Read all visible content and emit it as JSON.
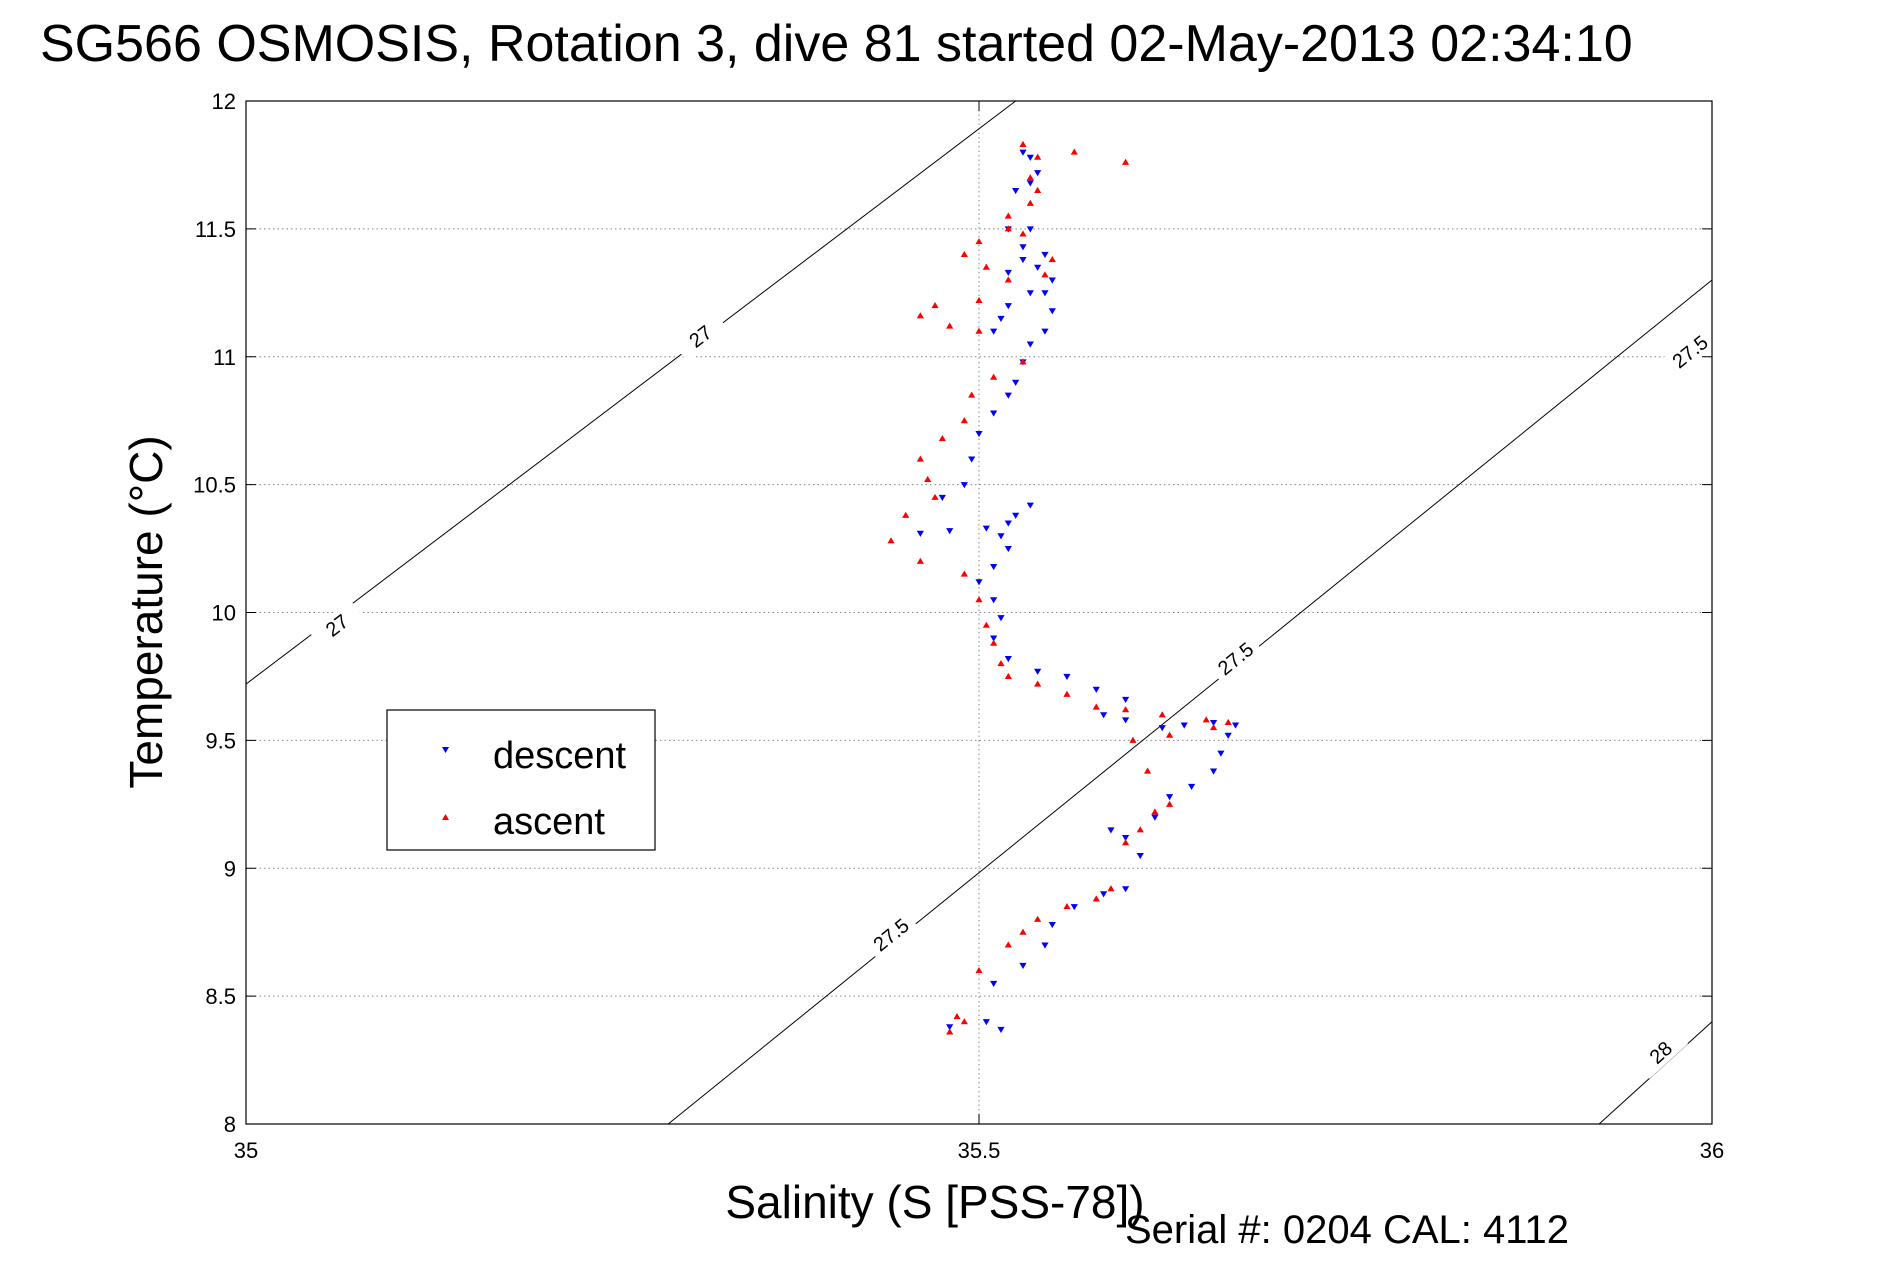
{
  "title": "SG566 OSMOSIS, Rotation 3, dive 81 started 02-May-2013 02:34:10",
  "footer": {
    "serial_text": "Serial #: 0204  CAL: 4112"
  },
  "colors": {
    "descent": "#0000ff",
    "ascent": "#ff0000",
    "contour": "#000000",
    "grid": "#888888"
  },
  "chart_data": {
    "type": "scatter",
    "xlabel": "Salinity (S [PSS-78])",
    "ylabel": "Temperature (°C)",
    "xlim": [
      35,
      36
    ],
    "ylim": [
      8,
      12
    ],
    "xticks": [
      35,
      35.5,
      36
    ],
    "xtick_labels": [
      "35",
      "35.5",
      "36"
    ],
    "yticks": [
      8,
      8.5,
      9,
      9.5,
      10,
      10.5,
      11,
      11.5,
      12
    ],
    "ytick_labels": [
      "8",
      "8.5",
      "9",
      "9.5",
      "10",
      "10.5",
      "11",
      "11.5",
      "12"
    ],
    "grid": true,
    "legend_position": "middle-left",
    "contours": [
      {
        "label": "27",
        "line": [
          [
            35.0,
            9.72
          ],
          [
            35.525,
            12.0
          ]
        ],
        "label_positions": [
          [
            35.062,
            9.95
          ],
          [
            35.31,
            11.08
          ]
        ]
      },
      {
        "label": "27.5",
        "line": [
          [
            35.288,
            8.0
          ],
          [
            36.0,
            11.3
          ]
        ],
        "label_positions": [
          [
            35.44,
            8.74
          ],
          [
            35.675,
            9.82
          ],
          [
            36.0,
            11.02
          ]
        ]
      },
      {
        "label": "28",
        "line": [
          [
            35.923,
            8.0
          ],
          [
            36.0,
            8.4
          ]
        ],
        "label_positions": [
          [
            35.965,
            8.28
          ]
        ]
      }
    ],
    "series": [
      {
        "name": "descent",
        "marker": "triangle-down",
        "points": [
          [
            35.48,
            8.38
          ],
          [
            35.505,
            8.4
          ],
          [
            35.515,
            8.37
          ],
          [
            35.51,
            8.55
          ],
          [
            35.53,
            8.62
          ],
          [
            35.545,
            8.7
          ],
          [
            35.55,
            8.78
          ],
          [
            35.565,
            8.85
          ],
          [
            35.585,
            8.9
          ],
          [
            35.6,
            8.92
          ],
          [
            35.61,
            9.05
          ],
          [
            35.6,
            9.12
          ],
          [
            35.59,
            9.15
          ],
          [
            35.62,
            9.2
          ],
          [
            35.63,
            9.28
          ],
          [
            35.645,
            9.32
          ],
          [
            35.66,
            9.38
          ],
          [
            35.665,
            9.45
          ],
          [
            35.67,
            9.52
          ],
          [
            35.675,
            9.56
          ],
          [
            35.66,
            9.57
          ],
          [
            35.64,
            9.56
          ],
          [
            35.625,
            9.55
          ],
          [
            35.6,
            9.58
          ],
          [
            35.585,
            9.6
          ],
          [
            35.6,
            9.66
          ],
          [
            35.58,
            9.7
          ],
          [
            35.56,
            9.75
          ],
          [
            35.54,
            9.77
          ],
          [
            35.52,
            9.82
          ],
          [
            35.51,
            9.9
          ],
          [
            35.515,
            9.98
          ],
          [
            35.51,
            10.05
          ],
          [
            35.5,
            10.12
          ],
          [
            35.51,
            10.18
          ],
          [
            35.52,
            10.25
          ],
          [
            35.515,
            10.3
          ],
          [
            35.52,
            10.35
          ],
          [
            35.535,
            10.42
          ],
          [
            35.525,
            10.38
          ],
          [
            35.505,
            10.33
          ],
          [
            35.48,
            10.32
          ],
          [
            35.46,
            10.31
          ],
          [
            35.475,
            10.45
          ],
          [
            35.49,
            10.5
          ],
          [
            35.495,
            10.6
          ],
          [
            35.5,
            10.7
          ],
          [
            35.51,
            10.78
          ],
          [
            35.52,
            10.85
          ],
          [
            35.525,
            10.9
          ],
          [
            35.53,
            10.98
          ],
          [
            35.535,
            11.05
          ],
          [
            35.545,
            11.1
          ],
          [
            35.55,
            11.18
          ],
          [
            35.545,
            11.25
          ],
          [
            35.55,
            11.3
          ],
          [
            35.54,
            11.35
          ],
          [
            35.545,
            11.4
          ],
          [
            35.53,
            11.43
          ],
          [
            35.535,
            11.5
          ],
          [
            35.52,
            11.5
          ],
          [
            35.53,
            11.38
          ],
          [
            35.52,
            11.33
          ],
          [
            35.535,
            11.25
          ],
          [
            35.52,
            11.2
          ],
          [
            35.51,
            11.1
          ],
          [
            35.515,
            11.15
          ],
          [
            35.525,
            11.65
          ],
          [
            35.535,
            11.68
          ],
          [
            35.54,
            11.72
          ],
          [
            35.535,
            11.78
          ],
          [
            35.53,
            11.8
          ]
        ]
      },
      {
        "name": "ascent",
        "marker": "triangle-up",
        "points": [
          [
            35.48,
            8.36
          ],
          [
            35.485,
            8.42
          ],
          [
            35.49,
            8.4
          ],
          [
            35.5,
            8.6
          ],
          [
            35.52,
            8.7
          ],
          [
            35.53,
            8.75
          ],
          [
            35.54,
            8.8
          ],
          [
            35.56,
            8.85
          ],
          [
            35.58,
            8.88
          ],
          [
            35.59,
            8.92
          ],
          [
            35.6,
            9.1
          ],
          [
            35.61,
            9.15
          ],
          [
            35.62,
            9.22
          ],
          [
            35.63,
            9.25
          ],
          [
            35.615,
            9.38
          ],
          [
            35.605,
            9.5
          ],
          [
            35.63,
            9.52
          ],
          [
            35.66,
            9.55
          ],
          [
            35.67,
            9.57
          ],
          [
            35.655,
            9.58
          ],
          [
            35.625,
            9.6
          ],
          [
            35.6,
            9.62
          ],
          [
            35.58,
            9.63
          ],
          [
            35.56,
            9.68
          ],
          [
            35.54,
            9.72
          ],
          [
            35.52,
            9.75
          ],
          [
            35.515,
            9.8
          ],
          [
            35.51,
            9.88
          ],
          [
            35.505,
            9.95
          ],
          [
            35.5,
            10.05
          ],
          [
            35.49,
            10.15
          ],
          [
            35.46,
            10.2
          ],
          [
            35.44,
            10.28
          ],
          [
            35.45,
            10.38
          ],
          [
            35.47,
            10.45
          ],
          [
            35.465,
            10.52
          ],
          [
            35.46,
            10.6
          ],
          [
            35.475,
            10.68
          ],
          [
            35.49,
            10.75
          ],
          [
            35.495,
            10.85
          ],
          [
            35.51,
            10.92
          ],
          [
            35.53,
            10.98
          ],
          [
            35.5,
            11.1
          ],
          [
            35.48,
            11.12
          ],
          [
            35.46,
            11.16
          ],
          [
            35.47,
            11.2
          ],
          [
            35.5,
            11.22
          ],
          [
            35.52,
            11.3
          ],
          [
            35.505,
            11.35
          ],
          [
            35.49,
            11.4
          ],
          [
            35.5,
            11.45
          ],
          [
            35.52,
            11.5
          ],
          [
            35.53,
            11.48
          ],
          [
            35.545,
            11.32
          ],
          [
            35.55,
            11.38
          ],
          [
            35.52,
            11.55
          ],
          [
            35.535,
            11.6
          ],
          [
            35.54,
            11.65
          ],
          [
            35.535,
            11.7
          ],
          [
            35.54,
            11.78
          ],
          [
            35.53,
            11.83
          ],
          [
            35.565,
            11.8
          ],
          [
            35.6,
            11.76
          ]
        ]
      }
    ]
  }
}
